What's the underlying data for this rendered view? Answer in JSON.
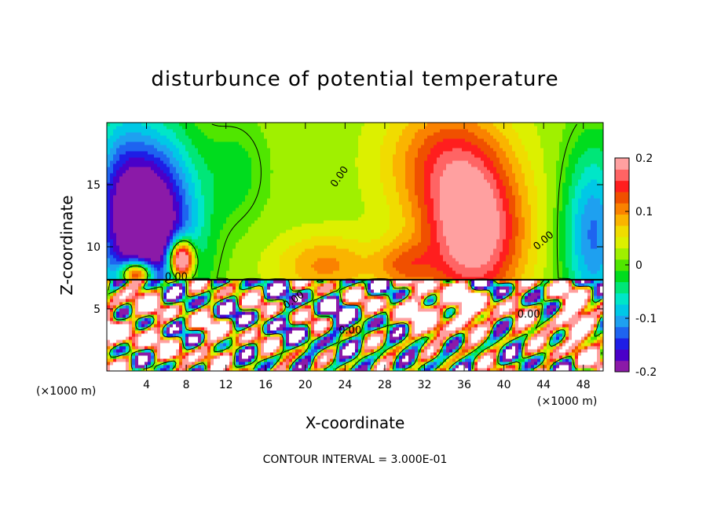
{
  "chart_data": {
    "type": "heatmap",
    "title": "disturbunce of potential temperature",
    "xlabel": "X-coordinate",
    "ylabel": "Z-coordinate",
    "x_unit_left": "(×1000 m)",
    "x_unit_right": "(×1000 m)",
    "xlim": [
      0,
      50
    ],
    "ylim": [
      0,
      20
    ],
    "x_ticks": [
      4,
      8,
      12,
      16,
      20,
      24,
      28,
      32,
      36,
      40,
      44,
      48
    ],
    "y_ticks": [
      5,
      10,
      15
    ],
    "colorbar": {
      "range": [
        -0.2,
        0.2
      ],
      "tick_labels": [
        "0.2",
        "0.1",
        "0",
        "-0.1",
        "-0.2"
      ],
      "tick_values": [
        0.2,
        0.1,
        0,
        -0.1,
        -0.2
      ],
      "colors": [
        "#8b1aa8",
        "#4a00c8",
        "#1e1ee6",
        "#1e64f0",
        "#1ea0f0",
        "#00c8e6",
        "#00e6c8",
        "#00e678",
        "#00dc1e",
        "#50e600",
        "#a0f000",
        "#dcf000",
        "#f0dc00",
        "#fab400",
        "#fa8200",
        "#f05000",
        "#ff1e1e",
        "#ff6464",
        "#ffa0a0"
      ]
    },
    "contour_labels": [
      "0.00",
      "0.00",
      "0.00",
      "0.00",
      "0.00",
      "0.00"
    ],
    "footer": "CONTOUR INTERVAL = 3.000E-01",
    "grid": false
  }
}
